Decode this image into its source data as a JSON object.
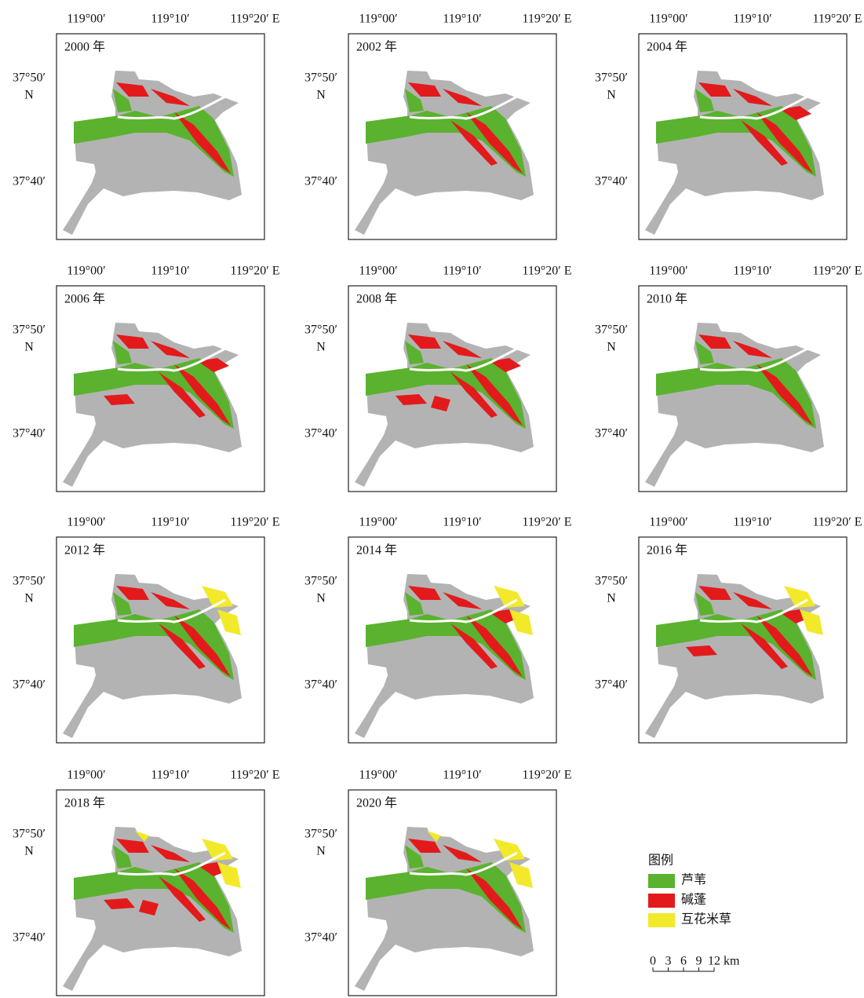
{
  "panels": [
    {
      "title": "2000 年"
    },
    {
      "title": "2002 年"
    },
    {
      "title": "2004 年"
    },
    {
      "title": "2006 年"
    },
    {
      "title": "2008 年"
    },
    {
      "title": "2010 年"
    },
    {
      "title": "2012 年"
    },
    {
      "title": "2014 年"
    },
    {
      "title": "2016 年"
    },
    {
      "title": "2018 年"
    },
    {
      "title": "2020 年"
    }
  ],
  "lon_labels": [
    "119°00′",
    "119°10′",
    "119°20′ E"
  ],
  "lat_labels": [
    "37°50′",
    "N",
    "37°40′"
  ],
  "legend": {
    "title": "图例",
    "items": [
      {
        "label": "芦苇",
        "color": "#5ab22e"
      },
      {
        "label": "碱蓬",
        "color": "#e31a1c"
      },
      {
        "label": "互花米草",
        "color": "#f2e92a"
      }
    ]
  },
  "scale_bar": {
    "labels": [
      "0",
      "3",
      "6",
      "9",
      "12"
    ],
    "unit": "km"
  }
}
